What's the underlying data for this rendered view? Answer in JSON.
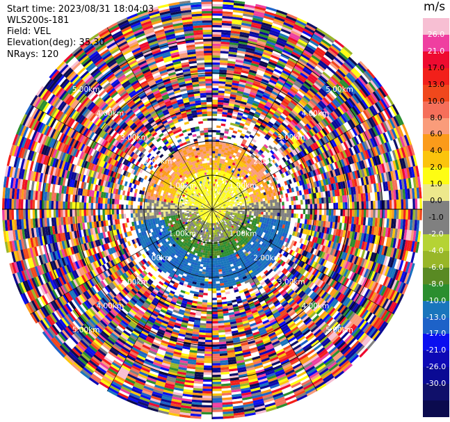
{
  "header": {
    "start_time": "Start time: 2023/08/31 18:04:03",
    "instrument": "WLS200s-181",
    "field": "Field: VEL",
    "elevation": "Elevation(deg): 35.30",
    "nrays": "NRays: 120"
  },
  "colorbar": {
    "unit": "m/s",
    "ticks": [
      "26.0",
      "21.0",
      "17.0",
      "13.0",
      "10.0",
      "8.0",
      "6.0",
      "4.0",
      "2.0",
      "1.0",
      "0.0",
      "-1.0",
      "-2.0",
      "-4.0",
      "-6.0",
      "-8.0",
      "-10.0",
      "-13.0",
      "-17.0",
      "-21.0",
      "-26.0",
      "-30.0"
    ],
    "colors": [
      "#f7bfd3",
      "#ef3fa0",
      "#ee0b30",
      "#f2201a",
      "#f0481c",
      "#f56f5a",
      "#fa9c7a",
      "#fb9b1a",
      "#fbc40c",
      "#fefd13",
      "#ede88c",
      "#808080",
      "#808080",
      "#b5d334",
      "#98b628",
      "#598a23",
      "#2b8e2f",
      "#1975bc",
      "#1d62c8",
      "#0b0ff0",
      "#0d09b5",
      "#0a0a94",
      "#10106a",
      "#0b0b4e"
    ]
  },
  "chart_data": {
    "type": "ppi",
    "field": "VEL",
    "nrays": 120,
    "elevation_deg": 35.3,
    "range_rings_km": [
      1.0,
      2.0,
      3.0,
      4.0,
      5.0
    ],
    "ring_labels": [
      "1.00km",
      "2.00km",
      "3.00km",
      "4.00km",
      "5.00km"
    ],
    "color_scale_units": "m/s",
    "color_scale_ticks": [
      26.0,
      21.0,
      17.0,
      13.0,
      10.0,
      8.0,
      6.0,
      4.0,
      2.0,
      1.0,
      0.0,
      -1.0,
      -2.0,
      -4.0,
      -6.0,
      -8.0,
      -10.0,
      -13.0,
      -17.0,
      -21.0,
      -26.0,
      -30.0
    ],
    "near_field_pattern": "positive velocities (yellow/orange) to the north, near-zero (grey/green) to the south, negative (blue) further south; outer region noisy"
  }
}
